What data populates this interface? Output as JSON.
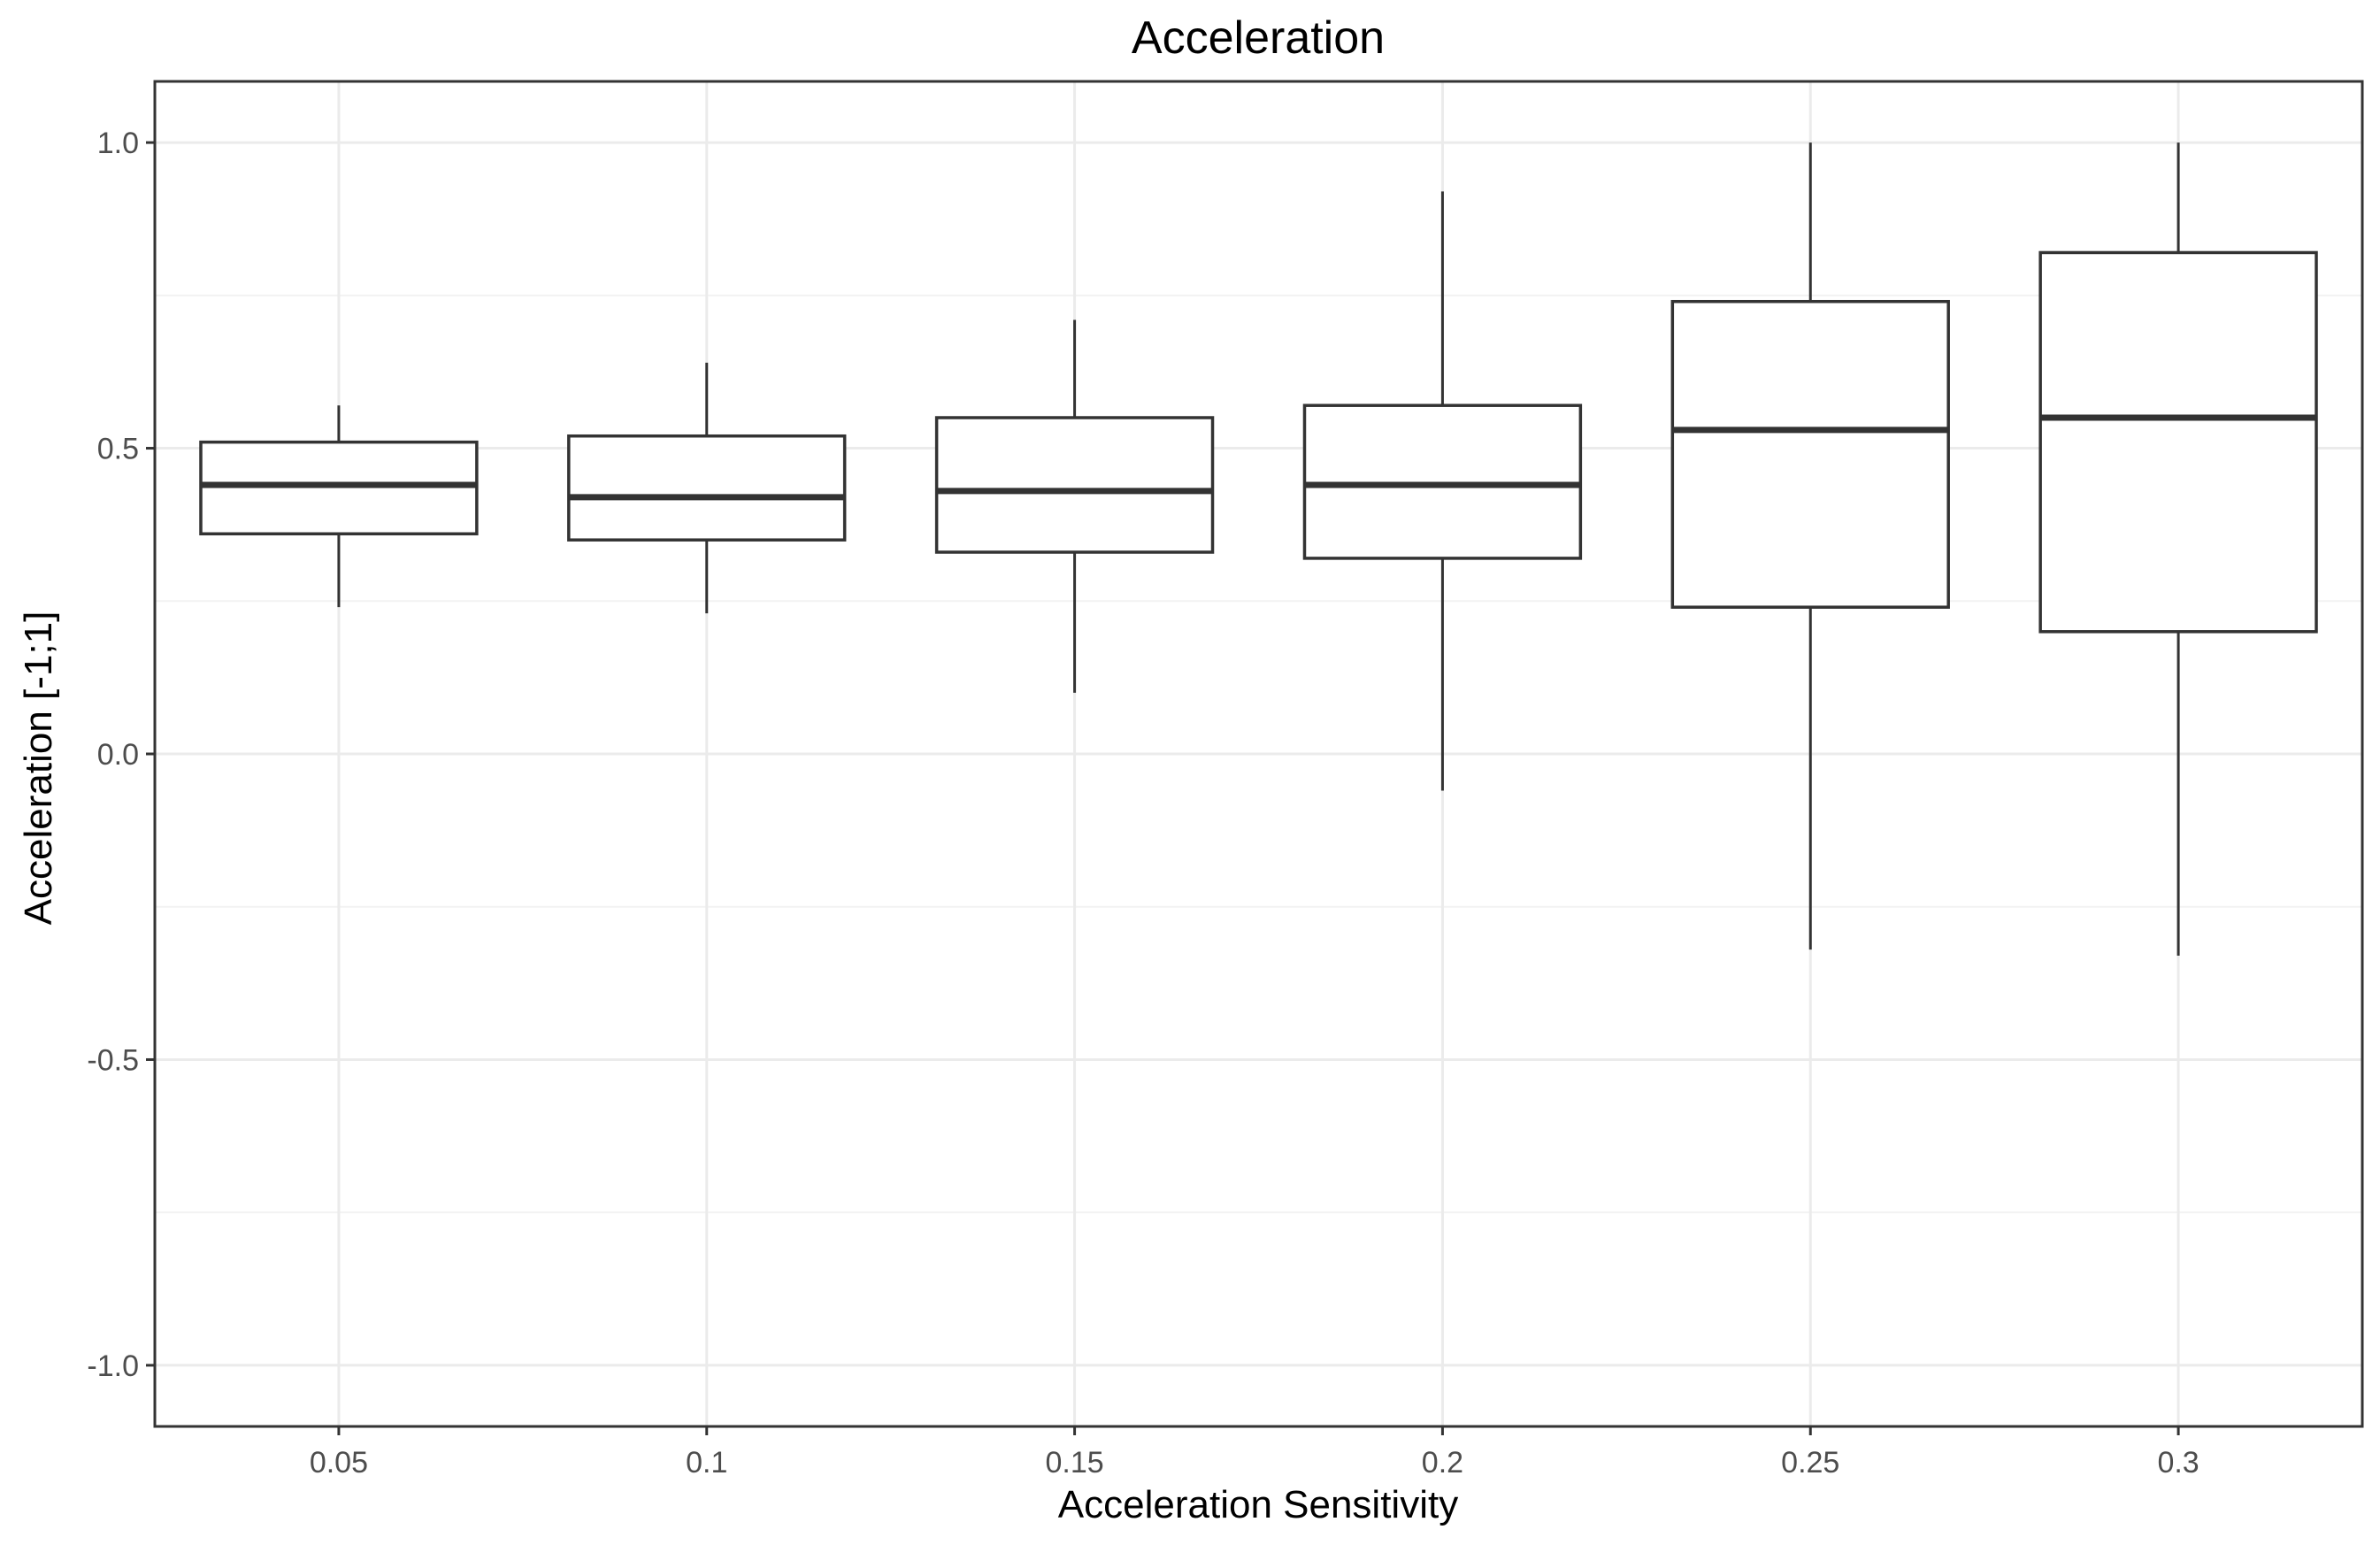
{
  "chart_data": {
    "type": "box",
    "title": "Acceleration",
    "xlabel": "Acceleration Sensitivity",
    "ylabel": "Acceleration [-1;1]",
    "categories": [
      "0.05",
      "0.1",
      "0.15",
      "0.2",
      "0.25",
      "0.3"
    ],
    "ylim": [
      -1.1,
      1.1
    ],
    "y_ticks": [
      -1.0,
      -0.5,
      0.0,
      0.5,
      1.0
    ],
    "y_tick_labels": [
      "-1.0",
      "-0.5",
      "0.0",
      "0.5",
      "1.0"
    ],
    "y_minor_ticks": [
      -0.75,
      -0.25,
      0.25,
      0.75
    ],
    "grid": true,
    "boxes": [
      {
        "category": "0.05",
        "whisker_low": 0.24,
        "q1": 0.36,
        "median": 0.44,
        "q3": 0.51,
        "whisker_high": 0.57
      },
      {
        "category": "0.1",
        "whisker_low": 0.23,
        "q1": 0.35,
        "median": 0.42,
        "q3": 0.52,
        "whisker_high": 0.64
      },
      {
        "category": "0.15",
        "whisker_low": 0.1,
        "q1": 0.33,
        "median": 0.43,
        "q3": 0.55,
        "whisker_high": 0.71
      },
      {
        "category": "0.2",
        "whisker_low": -0.06,
        "q1": 0.32,
        "median": 0.44,
        "q3": 0.57,
        "whisker_high": 0.92
      },
      {
        "category": "0.25",
        "whisker_low": -0.32,
        "q1": 0.24,
        "median": 0.53,
        "q3": 0.74,
        "whisker_high": 1.0
      },
      {
        "category": "0.3",
        "whisker_low": -0.33,
        "q1": 0.2,
        "median": 0.55,
        "q3": 0.82,
        "whisker_high": 1.0
      }
    ],
    "colors": {
      "box_stroke": "#333333",
      "box_fill": "#ffffff",
      "grid_major": "#ebebeb",
      "grid_minor": "#f2f2f2",
      "panel_border": "#333333",
      "tick_text": "#4d4d4d"
    }
  }
}
